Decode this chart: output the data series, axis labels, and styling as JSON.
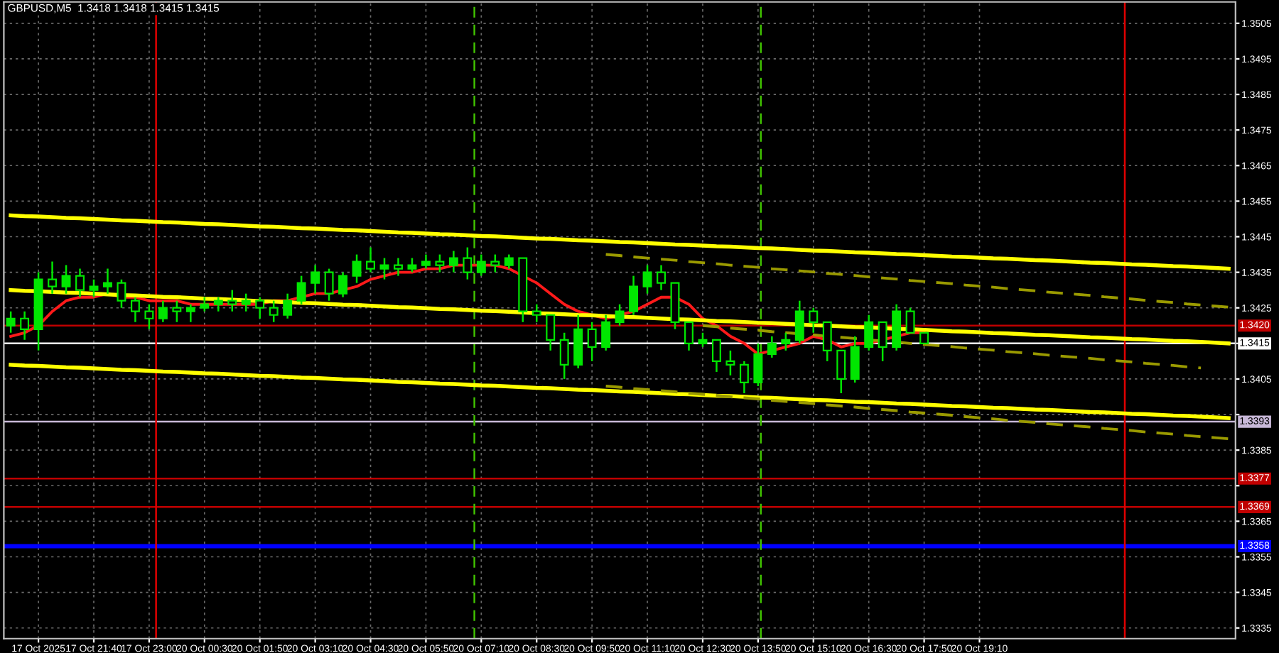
{
  "chart_data": {
    "type": "candlestick",
    "title": "GBPUSD,M5  1.3418 1.3418 1.3415 1.3415",
    "categories": [
      null,
      null,
      "17 Oct 2025",
      null,
      null,
      null,
      "17 Oct 21:40",
      null,
      null,
      null,
      "17 Oct 23:00",
      null,
      null,
      null,
      "20 Oct 00:30",
      null,
      null,
      null,
      "20 Oct 01:50",
      null,
      null,
      null,
      "20 Oct 03:10",
      null,
      null,
      null,
      "20 Oct 04:30",
      null,
      null,
      null,
      "20 Oct 05:50",
      null,
      null,
      null,
      "20 Oct 07:10",
      null,
      null,
      null,
      "20 Oct 08:30",
      null,
      null,
      null,
      "20 Oct 09:50",
      null,
      null,
      null,
      "20 Oct 11:10",
      null,
      null,
      null,
      "20 Oct 12:30",
      null,
      null,
      null,
      "20 Oct 13:50",
      null,
      null,
      null,
      "20 Oct 15:10",
      null,
      null,
      null,
      "20 Oct 16:30",
      null,
      null,
      null,
      "20 Oct 17:50",
      null,
      null,
      null,
      "20 Oct 19:10",
      null,
      null,
      null,
      null,
      null,
      null,
      null,
      null,
      null,
      null,
      null,
      null,
      null,
      null,
      null,
      null,
      null,
      null
    ],
    "ylim": [
      1.3332,
      1.3511
    ],
    "yticks": [
      1.3335,
      1.3345,
      1.3355,
      1.3365,
      {
        "value": 1.3375,
        "label": null
      },
      1.3385,
      {
        "value": 1.3395,
        "label": null
      },
      1.3405,
      {
        "value": 1.3415,
        "label": null
      },
      1.3425,
      1.3435,
      1.3445,
      1.3455,
      1.3465,
      1.3475,
      1.3485,
      1.3495,
      1.3505
    ],
    "grid": true,
    "series": [
      {
        "color": "#00e600",
        "ohlc": [
          [
            1.342,
            1.3424,
            1.3418,
            1.3422
          ],
          [
            1.3422,
            1.3424,
            1.3416,
            1.3419
          ],
          [
            1.3419,
            1.3435,
            1.3413,
            1.3433
          ],
          [
            1.3433,
            1.3438,
            1.3429,
            1.3431
          ],
          [
            1.3431,
            1.3437,
            1.3429,
            1.3434
          ],
          [
            1.3434,
            1.3436,
            1.3428,
            1.343
          ],
          [
            1.343,
            1.3433,
            1.3428,
            1.3431
          ],
          [
            1.3431,
            1.3436,
            1.3429,
            1.3432
          ],
          [
            1.3432,
            1.3433,
            1.3425,
            1.3427
          ],
          [
            1.3427,
            1.3428,
            1.3421,
            1.3424
          ],
          [
            1.3424,
            1.3426,
            1.3419,
            1.3422
          ],
          [
            1.3422,
            1.3427,
            1.3421,
            1.3425
          ],
          [
            1.3425,
            1.3427,
            1.3421,
            1.3424
          ],
          [
            1.3424,
            1.3426,
            1.3421,
            1.3425
          ],
          [
            1.3425,
            1.3428,
            1.3424,
            1.3426
          ],
          [
            1.3426,
            1.3428,
            1.3424,
            1.3427
          ],
          [
            1.3427,
            1.343,
            1.3424,
            1.3426
          ],
          [
            1.3426,
            1.3429,
            1.3424,
            1.3427
          ],
          [
            1.3427,
            1.3428,
            1.3422,
            1.3425
          ],
          [
            1.3425,
            1.3427,
            1.3421,
            1.3423
          ],
          [
            1.3423,
            1.3429,
            1.3422,
            1.3427
          ],
          [
            1.3427,
            1.3434,
            1.3426,
            1.3432
          ],
          [
            1.3432,
            1.3437,
            1.3429,
            1.3435
          ],
          [
            1.3435,
            1.3436,
            1.3427,
            1.3429
          ],
          [
            1.3429,
            1.3435,
            1.3428,
            1.3434
          ],
          [
            1.3434,
            1.344,
            1.3432,
            1.3438
          ],
          [
            1.3438,
            1.3442,
            1.3435,
            1.3436
          ],
          [
            1.3436,
            1.3439,
            1.3433,
            1.3437
          ],
          [
            1.3437,
            1.3439,
            1.3434,
            1.3436
          ],
          [
            1.3436,
            1.3439,
            1.3435,
            1.3437
          ],
          [
            1.3437,
            1.344,
            1.3436,
            1.3438
          ],
          [
            1.3438,
            1.344,
            1.3435,
            1.3437
          ],
          [
            1.3437,
            1.3441,
            1.3435,
            1.3439
          ],
          [
            1.3439,
            1.3442,
            1.3433,
            1.3435
          ],
          [
            1.3435,
            1.344,
            1.3434,
            1.3438
          ],
          [
            1.3438,
            1.344,
            1.3435,
            1.3437
          ],
          [
            1.3437,
            1.344,
            1.3436,
            1.3439
          ],
          [
            1.3439,
            1.3439,
            1.3421,
            1.3424
          ],
          [
            1.3424,
            1.3426,
            1.3421,
            1.3423
          ],
          [
            1.3423,
            1.3423,
            1.3413,
            1.3416
          ],
          [
            1.3416,
            1.3418,
            1.3405,
            1.3409
          ],
          [
            1.3409,
            1.3423,
            1.3408,
            1.3419
          ],
          [
            1.3419,
            1.3421,
            1.341,
            1.3414
          ],
          [
            1.3414,
            1.3423,
            1.3413,
            1.3421
          ],
          [
            1.3421,
            1.3426,
            1.342,
            1.3424
          ],
          [
            1.3424,
            1.3434,
            1.3423,
            1.3431
          ],
          [
            1.3431,
            1.3437,
            1.3429,
            1.3435
          ],
          [
            1.3435,
            1.3437,
            1.343,
            1.3432
          ],
          [
            1.3432,
            1.3432,
            1.3419,
            1.3421
          ],
          [
            1.3421,
            1.3421,
            1.3413,
            1.3415
          ],
          [
            1.3415,
            1.3418,
            1.3414,
            1.3416
          ],
          [
            1.3416,
            1.3416,
            1.3407,
            1.341
          ],
          [
            1.341,
            1.3413,
            1.3406,
            1.3409
          ],
          [
            1.3409,
            1.341,
            1.3401,
            1.3404
          ],
          [
            1.3404,
            1.3415,
            1.3403,
            1.3412
          ],
          [
            1.3412,
            1.3417,
            1.3411,
            1.3415
          ],
          [
            1.3415,
            1.3418,
            1.3413,
            1.3416
          ],
          [
            1.3416,
            1.3427,
            1.3415,
            1.3424
          ],
          [
            1.3424,
            1.3425,
            1.3418,
            1.3421
          ],
          [
            1.3421,
            1.3421,
            1.341,
            1.3413
          ],
          [
            1.3413,
            1.3413,
            1.3401,
            1.3405
          ],
          [
            1.3405,
            1.3417,
            1.3404,
            1.3414
          ],
          [
            1.3414,
            1.3423,
            1.3413,
            1.3421
          ],
          [
            1.3421,
            1.3421,
            1.341,
            1.3414
          ],
          [
            1.3414,
            1.3426,
            1.3413,
            1.3424
          ],
          [
            1.3424,
            1.3425,
            1.3418,
            1.3418
          ],
          [
            1.3418,
            1.3418,
            1.3415,
            1.3415
          ],
          null,
          null,
          null,
          null,
          null,
          null,
          null,
          null,
          null,
          null,
          null,
          null,
          null,
          null,
          null,
          null,
          null,
          null,
          null,
          null,
          null,
          null
        ]
      },
      {
        "type": "line",
        "color": "#ff1a1a",
        "values": [
          1.3417,
          1.3418,
          1.342,
          1.3424,
          1.3427,
          1.3428,
          1.3428,
          1.3429,
          1.3428,
          1.3428,
          1.3427,
          1.3427,
          1.3427,
          1.3426,
          1.3426,
          1.3426,
          1.3426,
          1.3426,
          1.3426,
          1.3427,
          1.3427,
          1.3428,
          1.3429,
          1.3429,
          1.343,
          1.3431,
          1.3433,
          1.3434,
          1.3435,
          1.3435,
          1.3436,
          1.3436,
          1.3437,
          1.3437,
          1.3437,
          1.3437,
          1.3436,
          1.3434,
          1.3432,
          1.3429,
          1.3426,
          1.3424,
          1.3423,
          1.3422,
          1.3423,
          1.3424,
          1.3426,
          1.3428,
          1.3428,
          1.3426,
          1.3422,
          1.342,
          1.3417,
          1.3415,
          1.3412,
          1.3413,
          1.3414,
          1.3415,
          1.3417,
          1.3416,
          1.3414,
          1.3415,
          1.3415,
          1.3416,
          1.3417,
          1.3418,
          1.3418,
          null,
          null,
          null,
          null,
          null,
          null,
          null,
          null,
          null,
          null,
          null,
          null,
          null,
          null,
          null,
          null,
          null,
          null,
          null,
          null,
          null,
          null
        ]
      },
      {
        "type": "line",
        "color": "#ffff00",
        "values": [
          1.3451,
          1.34508,
          1.34507,
          1.34505,
          1.34503,
          1.34502,
          1.345,
          1.34498,
          1.34496,
          1.34495,
          1.34493,
          1.34491,
          1.3449,
          1.34488,
          1.34486,
          1.34485,
          1.34483,
          1.34481,
          1.34479,
          1.34478,
          1.34476,
          1.34474,
          1.34473,
          1.34471,
          1.34469,
          1.34468,
          1.34466,
          1.34464,
          1.34462,
          1.34461,
          1.34459,
          1.34457,
          1.34456,
          1.34454,
          1.34452,
          1.34451,
          1.34449,
          1.34447,
          1.34445,
          1.34444,
          1.34442,
          1.3444,
          1.34439,
          1.34437,
          1.34435,
          1.34434,
          1.34432,
          1.3443,
          1.34428,
          1.34427,
          1.34425,
          1.34423,
          1.34422,
          1.3442,
          1.34418,
          1.34417,
          1.34415,
          1.34413,
          1.34411,
          1.3441,
          1.34408,
          1.34406,
          1.34405,
          1.34403,
          1.34401,
          1.344,
          1.34398,
          1.34396,
          1.34394,
          1.34393,
          1.34391,
          1.34389,
          1.34388,
          1.34386,
          1.34384,
          1.34383,
          1.34381,
          1.34379,
          1.34377,
          1.34376,
          1.34374,
          1.34372,
          1.34371,
          1.34369,
          1.34367,
          1.34366,
          1.34364,
          1.34362,
          1.3436
        ]
      },
      {
        "type": "line",
        "color": "#ffff00",
        "values": [
          1.343,
          1.34298,
          1.34297,
          1.34295,
          1.34293,
          1.34292,
          1.3429,
          1.34288,
          1.34286,
          1.34285,
          1.34283,
          1.34281,
          1.3428,
          1.34278,
          1.34276,
          1.34275,
          1.34273,
          1.34271,
          1.34269,
          1.34268,
          1.34266,
          1.34264,
          1.34263,
          1.34261,
          1.34259,
          1.34258,
          1.34256,
          1.34254,
          1.34252,
          1.34251,
          1.34249,
          1.34247,
          1.34246,
          1.34244,
          1.34242,
          1.34241,
          1.34239,
          1.34237,
          1.34235,
          1.34234,
          1.34232,
          1.3423,
          1.34229,
          1.34227,
          1.34225,
          1.34224,
          1.34222,
          1.3422,
          1.34218,
          1.34217,
          1.34215,
          1.34213,
          1.34212,
          1.3421,
          1.34208,
          1.34207,
          1.34205,
          1.34203,
          1.34201,
          1.342,
          1.34198,
          1.34196,
          1.34195,
          1.34193,
          1.34191,
          1.3419,
          1.34188,
          1.34186,
          1.34184,
          1.34183,
          1.34181,
          1.34179,
          1.34178,
          1.34176,
          1.34174,
          1.34173,
          1.34171,
          1.34169,
          1.34167,
          1.34166,
          1.34164,
          1.34162,
          1.34161,
          1.34159,
          1.34157,
          1.34156,
          1.34154,
          1.34152,
          1.3415
        ]
      },
      {
        "type": "line",
        "color": "#ffff00",
        "values": [
          1.3409,
          1.34088,
          1.34087,
          1.34085,
          1.34083,
          1.34082,
          1.3408,
          1.34078,
          1.34076,
          1.34075,
          1.34073,
          1.34071,
          1.3407,
          1.34068,
          1.34066,
          1.34065,
          1.34063,
          1.34061,
          1.34059,
          1.34058,
          1.34056,
          1.34054,
          1.34053,
          1.34051,
          1.34049,
          1.34048,
          1.34046,
          1.34044,
          1.34042,
          1.34041,
          1.34039,
          1.34037,
          1.34036,
          1.34034,
          1.34032,
          1.34031,
          1.34029,
          1.34027,
          1.34025,
          1.34024,
          1.34022,
          1.3402,
          1.34019,
          1.34017,
          1.34015,
          1.34014,
          1.34012,
          1.3401,
          1.34008,
          1.34007,
          1.34005,
          1.34003,
          1.34002,
          1.34,
          1.33998,
          1.33997,
          1.33995,
          1.33993,
          1.33991,
          1.3399,
          1.33988,
          1.33986,
          1.33985,
          1.33983,
          1.33981,
          1.3398,
          1.33978,
          1.33976,
          1.33974,
          1.33973,
          1.33971,
          1.33969,
          1.33968,
          1.33966,
          1.33964,
          1.33963,
          1.33961,
          1.33959,
          1.33957,
          1.33956,
          1.33954,
          1.33952,
          1.33951,
          1.33949,
          1.33947,
          1.33946,
          1.33944,
          1.33942,
          1.3394
        ]
      },
      {
        "type": "line",
        "color": "#9a9a00",
        "line_style": "dashed",
        "values": [
          null,
          null,
          null,
          null,
          null,
          null,
          null,
          null,
          null,
          null,
          null,
          null,
          null,
          null,
          null,
          null,
          null,
          null,
          null,
          null,
          null,
          null,
          null,
          null,
          null,
          null,
          null,
          null,
          null,
          null,
          null,
          null,
          null,
          null,
          null,
          null,
          null,
          null,
          null,
          null,
          null,
          null,
          null,
          1.344,
          1.34397,
          1.34393,
          1.3439,
          1.34387,
          1.34384,
          1.3438,
          1.34377,
          1.34374,
          1.3437,
          1.34367,
          1.34364,
          1.3436,
          1.34357,
          1.34354,
          1.34351,
          1.34347,
          1.34344,
          1.34341,
          1.34337,
          1.34334,
          1.34331,
          1.34327,
          1.34324,
          1.34321,
          1.34318,
          1.34314,
          1.34311,
          1.34308,
          1.34304,
          1.34301,
          1.34298,
          1.34294,
          1.34291,
          1.34288,
          1.34285,
          1.34281,
          1.34278,
          1.34275,
          1.34271,
          1.34268,
          1.34265,
          1.34261,
          1.34258,
          1.34255,
          1.34252
        ]
      },
      {
        "type": "line",
        "color": "#9a9a00",
        "line_style": "dashed",
        "values": [
          null,
          null,
          null,
          null,
          null,
          null,
          null,
          null,
          null,
          null,
          null,
          null,
          null,
          null,
          null,
          null,
          null,
          null,
          null,
          null,
          null,
          null,
          null,
          null,
          null,
          null,
          null,
          null,
          null,
          null,
          null,
          null,
          null,
          null,
          null,
          null,
          null,
          null,
          null,
          null,
          null,
          null,
          null,
          null,
          null,
          null,
          null,
          null,
          null,
          null,
          1.342,
          1.34197,
          1.34193,
          1.3419,
          1.34187,
          1.34183,
          1.3418,
          1.34177,
          1.34174,
          1.3417,
          1.34167,
          1.34164,
          1.3416,
          1.34157,
          1.34154,
          1.3415,
          1.34147,
          1.34144,
          1.34141,
          1.34137,
          1.34134,
          1.34131,
          1.34127,
          1.34124,
          1.34121,
          1.34117,
          1.34114,
          1.34111,
          1.34108,
          1.34104,
          1.34101,
          1.34098,
          1.34094,
          1.34091,
          1.34088,
          1.34084,
          1.34081,
          null,
          null
        ]
      },
      {
        "type": "line",
        "color": "#9a9a00",
        "line_style": "dashed",
        "values": [
          null,
          null,
          null,
          null,
          null,
          null,
          null,
          null,
          null,
          null,
          null,
          null,
          null,
          null,
          null,
          null,
          null,
          null,
          null,
          null,
          null,
          null,
          null,
          null,
          null,
          null,
          null,
          null,
          null,
          null,
          null,
          null,
          null,
          null,
          null,
          null,
          null,
          null,
          null,
          null,
          null,
          null,
          null,
          1.3403,
          1.34027,
          1.34023,
          1.3402,
          1.34017,
          1.34014,
          1.3401,
          1.34007,
          1.34004,
          1.34,
          1.33997,
          1.33994,
          1.3399,
          1.33987,
          1.33984,
          1.33981,
          1.33977,
          1.33974,
          1.33971,
          1.33967,
          1.33964,
          1.33961,
          1.33957,
          1.33954,
          1.33951,
          1.33948,
          1.33944,
          1.33941,
          1.33938,
          1.33934,
          1.33931,
          1.33928,
          1.33924,
          1.33921,
          1.33918,
          1.33915,
          1.33911,
          1.33908,
          1.33905,
          1.33901,
          1.33898,
          1.33895,
          1.33891,
          1.33888,
          1.33885,
          1.33882
        ]
      }
    ],
    "ref_lines": [
      {
        "axis": "y",
        "value": 1.342,
        "label": "1.3420",
        "color": "#c00000"
      },
      {
        "axis": "y",
        "value": 1.3415,
        "label": "1.3415",
        "color": "#ffffff"
      },
      {
        "axis": "y",
        "value": 1.3393,
        "label": "1.3393",
        "color": "#c8b8d8"
      },
      {
        "axis": "y",
        "value": 1.3377,
        "label": "1.3377",
        "color": "#c00000"
      },
      {
        "axis": "y",
        "value": 1.3369,
        "label": "1.3369",
        "color": "#c00000"
      },
      {
        "axis": "y",
        "value": 1.3358,
        "label": "1.3358",
        "color": "#0000ff"
      }
    ]
  }
}
